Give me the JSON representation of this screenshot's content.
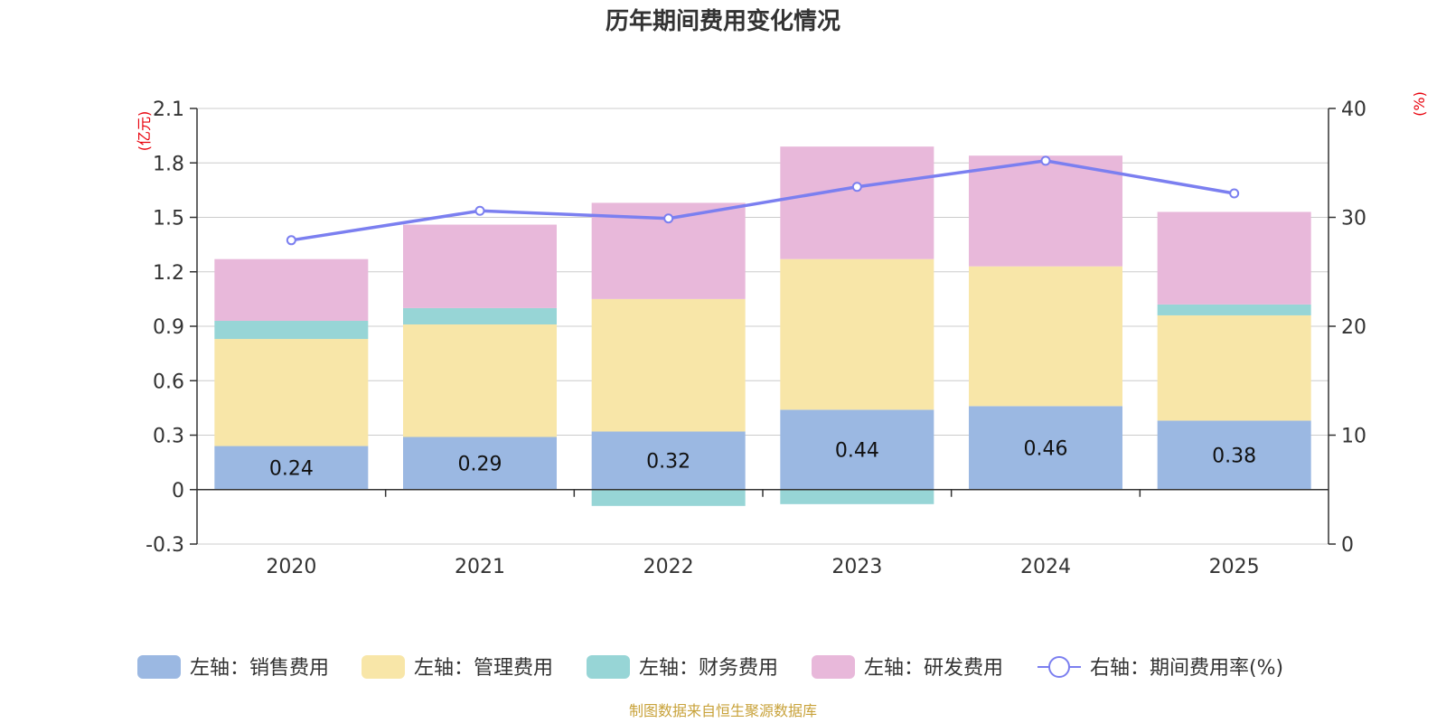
{
  "chart_data": {
    "type": "bar",
    "stacked": true,
    "title": "历年期间费用变化情况",
    "categories": [
      "2020",
      "2021",
      "2022",
      "2023",
      "2024",
      "2025"
    ],
    "series": [
      {
        "name": "左轴：销售费用",
        "axis": "left",
        "color": "#9bb8e2",
        "values": [
          0.24,
          0.29,
          0.32,
          0.44,
          0.46,
          0.38
        ],
        "labels": [
          "0.24",
          "0.29",
          "0.32",
          "0.44",
          "0.46",
          "0.38"
        ]
      },
      {
        "name": "左轴：管理费用",
        "axis": "left",
        "color": "#f8e6a8",
        "values": [
          0.59,
          0.62,
          0.73,
          0.83,
          0.77,
          0.58
        ]
      },
      {
        "name": "左轴：财务费用",
        "axis": "left",
        "color": "#97d5d6",
        "values": [
          0.1,
          0.09,
          -0.09,
          -0.08,
          0.0,
          0.06
        ]
      },
      {
        "name": "左轴：研发费用",
        "axis": "left",
        "color": "#e8b8da",
        "values": [
          0.34,
          0.46,
          0.53,
          0.62,
          0.61,
          0.51
        ]
      },
      {
        "name": "右轴：期间费用率(%)",
        "axis": "right",
        "type": "line",
        "color": "#7b7ff0",
        "values": [
          27.9,
          30.6,
          29.9,
          32.8,
          35.2,
          32.2
        ]
      }
    ],
    "left_axis": {
      "unit": "(亿元)",
      "min": -0.3,
      "max": 2.1,
      "ticks": [
        "-0.3",
        "0",
        "0.3",
        "0.6",
        "0.9",
        "1.2",
        "1.5",
        "1.8",
        "2.1"
      ]
    },
    "right_axis": {
      "unit": "(%)",
      "min": 0,
      "max": 40,
      "ticks": [
        "0",
        "10",
        "20",
        "30",
        "40"
      ]
    },
    "legend_position": "bottom",
    "source": "制图数据来自恒生聚源数据库"
  }
}
